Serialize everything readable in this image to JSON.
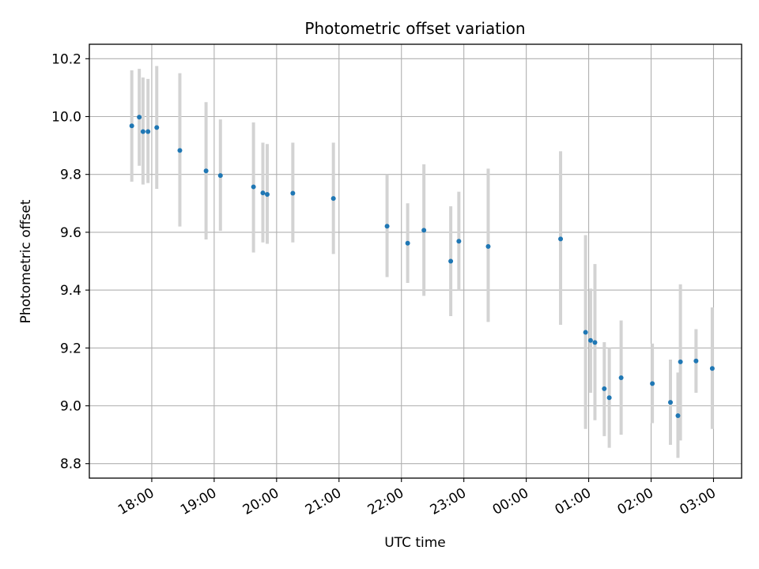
{
  "chart_data": {
    "type": "scatter",
    "title": "Photometric offset variation",
    "xlabel": "UTC time",
    "ylabel": "Photometric offset",
    "x_unit": "hours (UTC, continuing past midnight)",
    "xlim": [
      17.0,
      27.45
    ],
    "ylim": [
      8.75,
      10.25
    ],
    "x_ticks": [
      {
        "value": 18,
        "label": "18:00"
      },
      {
        "value": 19,
        "label": "19:00"
      },
      {
        "value": 20,
        "label": "20:00"
      },
      {
        "value": 21,
        "label": "21:00"
      },
      {
        "value": 22,
        "label": "22:00"
      },
      {
        "value": 23,
        "label": "23:00"
      },
      {
        "value": 24,
        "label": "00:00"
      },
      {
        "value": 25,
        "label": "01:00"
      },
      {
        "value": 26,
        "label": "02:00"
      },
      {
        "value": 27,
        "label": "03:00"
      }
    ],
    "y_ticks": [
      {
        "value": 8.8,
        "label": "8.8"
      },
      {
        "value": 9.0,
        "label": "9.0"
      },
      {
        "value": 9.2,
        "label": "9.2"
      },
      {
        "value": 9.4,
        "label": "9.4"
      },
      {
        "value": 9.6,
        "label": "9.6"
      },
      {
        "value": 9.8,
        "label": "9.8"
      },
      {
        "value": 10.0,
        "label": "10.0"
      },
      {
        "value": 10.2,
        "label": "10.2"
      }
    ],
    "grid": true,
    "x_tick_rotation_deg": 30,
    "colors": {
      "points": "#1f77b4",
      "errorbars": "#d3d3d3",
      "grid": "#b0b0b0"
    },
    "points": [
      {
        "x": 17.68,
        "y": 9.968,
        "ylo": 9.775,
        "yhi": 10.16
      },
      {
        "x": 17.8,
        "y": 9.998,
        "ylo": 9.83,
        "yhi": 10.165
      },
      {
        "x": 17.86,
        "y": 9.948,
        "ylo": 9.765,
        "yhi": 10.135
      },
      {
        "x": 17.94,
        "y": 9.948,
        "ylo": 9.77,
        "yhi": 10.13
      },
      {
        "x": 18.08,
        "y": 9.962,
        "ylo": 9.75,
        "yhi": 10.175
      },
      {
        "x": 18.45,
        "y": 9.883,
        "ylo": 9.62,
        "yhi": 10.15
      },
      {
        "x": 18.87,
        "y": 9.812,
        "ylo": 9.575,
        "yhi": 10.05
      },
      {
        "x": 19.1,
        "y": 9.796,
        "ylo": 9.605,
        "yhi": 9.99
      },
      {
        "x": 19.63,
        "y": 9.757,
        "ylo": 9.53,
        "yhi": 9.98
      },
      {
        "x": 19.78,
        "y": 9.736,
        "ylo": 9.565,
        "yhi": 9.91
      },
      {
        "x": 19.85,
        "y": 9.731,
        "ylo": 9.56,
        "yhi": 9.905
      },
      {
        "x": 20.26,
        "y": 9.735,
        "ylo": 9.565,
        "yhi": 9.91
      },
      {
        "x": 20.91,
        "y": 9.717,
        "ylo": 9.525,
        "yhi": 9.91
      },
      {
        "x": 21.77,
        "y": 9.621,
        "ylo": 9.445,
        "yhi": 9.8
      },
      {
        "x": 22.1,
        "y": 9.562,
        "ylo": 9.425,
        "yhi": 9.7
      },
      {
        "x": 22.36,
        "y": 9.607,
        "ylo": 9.38,
        "yhi": 9.835
      },
      {
        "x": 22.79,
        "y": 9.5,
        "ylo": 9.31,
        "yhi": 9.69
      },
      {
        "x": 22.92,
        "y": 9.569,
        "ylo": 9.4,
        "yhi": 9.74
      },
      {
        "x": 23.39,
        "y": 9.551,
        "ylo": 9.29,
        "yhi": 9.82
      },
      {
        "x": 24.55,
        "y": 9.577,
        "ylo": 9.28,
        "yhi": 9.88
      },
      {
        "x": 24.95,
        "y": 9.254,
        "ylo": 8.92,
        "yhi": 9.59
      },
      {
        "x": 25.03,
        "y": 9.226,
        "ylo": 9.045,
        "yhi": 9.405
      },
      {
        "x": 25.1,
        "y": 9.219,
        "ylo": 8.95,
        "yhi": 9.49
      },
      {
        "x": 25.25,
        "y": 9.059,
        "ylo": 8.895,
        "yhi": 9.22
      },
      {
        "x": 25.33,
        "y": 9.028,
        "ylo": 8.855,
        "yhi": 9.2
      },
      {
        "x": 25.52,
        "y": 9.097,
        "ylo": 8.9,
        "yhi": 9.295
      },
      {
        "x": 26.02,
        "y": 9.077,
        "ylo": 8.94,
        "yhi": 9.215
      },
      {
        "x": 26.31,
        "y": 9.012,
        "ylo": 8.865,
        "yhi": 9.16
      },
      {
        "x": 26.43,
        "y": 8.966,
        "ylo": 8.82,
        "yhi": 9.115
      },
      {
        "x": 26.47,
        "y": 9.152,
        "ylo": 8.88,
        "yhi": 9.42
      },
      {
        "x": 26.72,
        "y": 9.155,
        "ylo": 9.045,
        "yhi": 9.265
      },
      {
        "x": 26.98,
        "y": 9.129,
        "ylo": 8.92,
        "yhi": 9.34
      }
    ]
  }
}
